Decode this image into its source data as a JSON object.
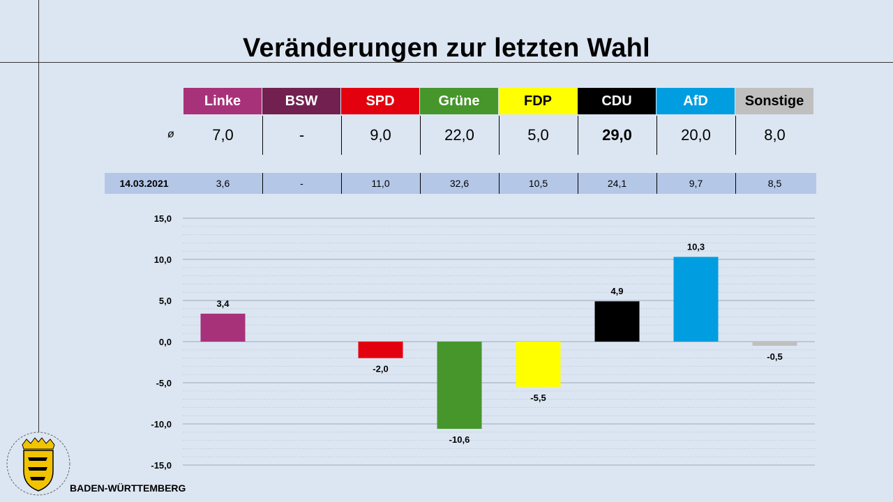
{
  "title": "Veränderungen zur letzten Wahl",
  "avg_symbol": "ø",
  "region": "BADEN-WÜRTTEMBERG",
  "parties": [
    {
      "name": "Linke",
      "color": "#a83279",
      "text_color": "#ffffff",
      "avg": "7,0",
      "prev": "3,6"
    },
    {
      "name": "BSW",
      "color": "#722050",
      "text_color": "#ffffff",
      "avg": "-",
      "prev": "-"
    },
    {
      "name": "SPD",
      "color": "#e3000f",
      "text_color": "#ffffff",
      "avg": "9,0",
      "prev": "11,0"
    },
    {
      "name": "Grüne",
      "color": "#46962b",
      "text_color": "#ffffff",
      "avg": "22,0",
      "prev": "32,6"
    },
    {
      "name": "FDP",
      "color": "#ffff00",
      "text_color": "#000000",
      "avg": "5,0",
      "prev": "10,5"
    },
    {
      "name": "CDU",
      "color": "#000000",
      "text_color": "#ffffff",
      "avg": "29,0",
      "prev": "24,1",
      "bold": true
    },
    {
      "name": "AfD",
      "color": "#009ee0",
      "text_color": "#ffffff",
      "avg": "20,0",
      "prev": "9,7"
    },
    {
      "name": "Sonstige",
      "color": "#bfbfbf",
      "text_color": "#000000",
      "avg": "8,0",
      "prev": "8,5"
    }
  ],
  "prev_election_date": "14.03.2021",
  "chart_data": {
    "type": "bar",
    "categories": [
      "Linke",
      "BSW",
      "SPD",
      "Grüne",
      "FDP",
      "CDU",
      "AfD",
      "Sonstige"
    ],
    "values": [
      3.4,
      null,
      -2.0,
      -10.6,
      -5.5,
      4.9,
      10.3,
      -0.5
    ],
    "value_labels": [
      "3,4",
      "",
      "-2,0",
      "-10,6",
      "-5,5",
      "4,9",
      "10,3",
      "-0,5"
    ],
    "colors": [
      "#a83279",
      "#722050",
      "#e3000f",
      "#46962b",
      "#ffff00",
      "#000000",
      "#009ee0",
      "#bfbfbf"
    ],
    "ylim": [
      -15,
      15
    ],
    "yticks": [
      15,
      10,
      5,
      0,
      -5,
      -10,
      -15
    ],
    "ytick_labels": [
      "15,0",
      "10,0",
      "5,0",
      "0,0",
      "-5,0",
      "-10,0",
      "-15,0"
    ],
    "grid": true,
    "legend": "none"
  }
}
